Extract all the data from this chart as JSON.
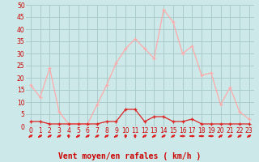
{
  "hours": [
    0,
    1,
    2,
    3,
    4,
    5,
    6,
    7,
    8,
    9,
    10,
    11,
    12,
    13,
    14,
    15,
    16,
    17,
    18,
    19,
    20,
    21,
    22,
    23
  ],
  "wind_avg": [
    2,
    2,
    1,
    1,
    1,
    1,
    1,
    1,
    2,
    2,
    7,
    7,
    2,
    4,
    4,
    2,
    2,
    3,
    1,
    1,
    1,
    1,
    1,
    1
  ],
  "wind_gust": [
    17,
    12,
    24,
    6,
    1,
    1,
    1,
    9,
    17,
    26,
    32,
    36,
    32,
    28,
    48,
    43,
    30,
    33,
    21,
    22,
    9,
    16,
    6,
    3
  ],
  "arrow_angles": [
    45,
    45,
    45,
    45,
    90,
    45,
    45,
    45,
    45,
    45,
    90,
    90,
    45,
    45,
    45,
    45,
    0,
    0,
    0,
    0,
    45,
    45,
    45,
    45
  ],
  "bg_color": "#cce8e8",
  "grid_color": "#aacccc",
  "line_avg_color": "#dd2222",
  "line_gust_color": "#ffaaaa",
  "marker_avg_color": "#dd2222",
  "marker_gust_color": "#ffaaaa",
  "arrow_color": "#dd2222",
  "xlabel": "Vent moyen/en rafales ( km/h )",
  "xlabel_color": "#cc0000",
  "tick_color": "#cc0000",
  "ylim": [
    0,
    50
  ],
  "yticks": [
    0,
    5,
    10,
    15,
    20,
    25,
    30,
    35,
    40,
    45,
    50
  ],
  "tick_fontsize": 5.5,
  "xlabel_fontsize": 7.0
}
